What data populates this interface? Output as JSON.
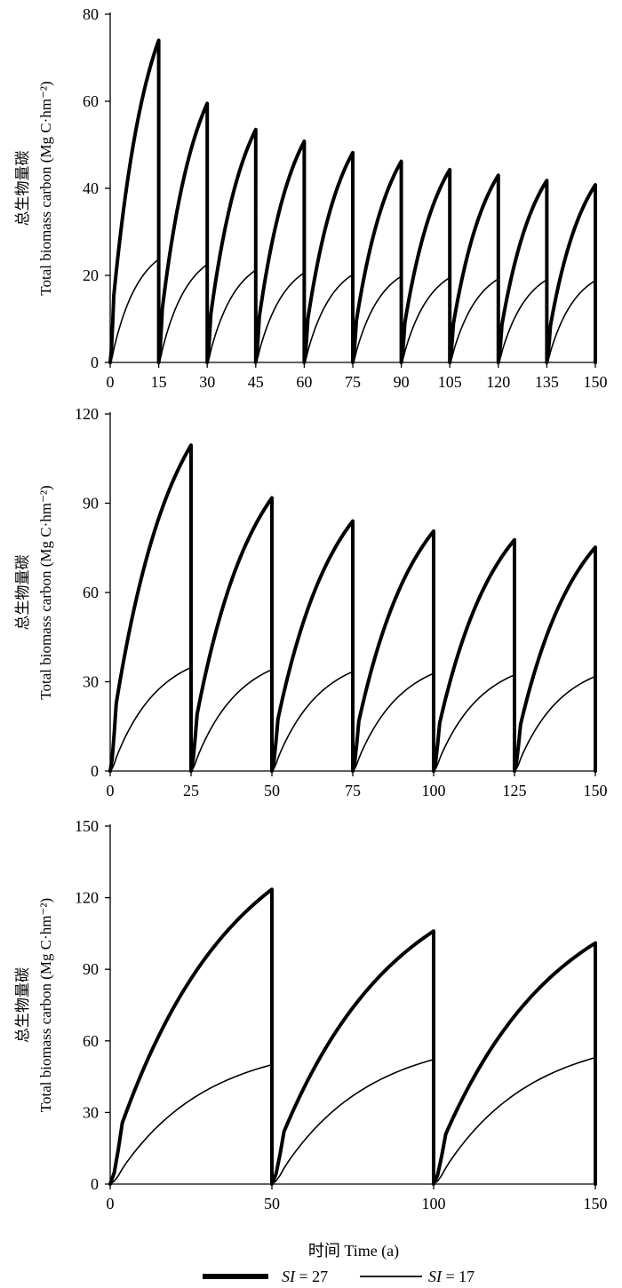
{
  "chart_data": [
    {
      "type": "line",
      "ylabel_cn": "总生物量碳",
      "ylabel_en": "Total  biomass carbon (Mg C·hm⁻²)",
      "ylim": [
        0,
        80
      ],
      "yticks": [
        0,
        20,
        40,
        60,
        80
      ],
      "xlim": [
        0,
        150
      ],
      "xticks": [
        0,
        15,
        30,
        45,
        60,
        75,
        90,
        105,
        120,
        135,
        150
      ],
      "series": [
        {
          "name": "SI = 27",
          "style": "thick",
          "peaks": [
            74,
            59.5,
            53.5,
            50.8,
            48.2,
            46.2,
            44.3,
            43,
            41.8,
            40.8
          ],
          "rotation": 15
        },
        {
          "name": "SI = 17",
          "style": "thin",
          "peaks": [
            23.7,
            22.5,
            21.2,
            20.6,
            20.2,
            19.8,
            19.5,
            19.2,
            19,
            18.8
          ],
          "rotation": 15
        }
      ]
    },
    {
      "type": "line",
      "ylabel_cn": "总生物量碳",
      "ylabel_en": "Total  biomass carbon (Mg C·hm⁻²)",
      "ylim": [
        0,
        120
      ],
      "yticks": [
        0,
        30,
        60,
        90,
        120
      ],
      "xlim": [
        0,
        150
      ],
      "xticks": [
        0,
        25,
        50,
        75,
        100,
        125,
        150
      ],
      "series": [
        {
          "name": "SI = 27",
          "style": "thick",
          "peaks": [
            109.5,
            91.8,
            84,
            80.6,
            77.7,
            75.2
          ],
          "rotation": 25
        },
        {
          "name": "SI = 17",
          "style": "thin",
          "peaks": [
            34.8,
            34.1,
            33.4,
            32.8,
            32.3,
            31.8
          ],
          "rotation": 25
        }
      ]
    },
    {
      "type": "line",
      "ylabel_cn": "总生物量碳",
      "ylabel_en": "Total  biomass carbon (Mg C·hm⁻²)",
      "ylim": [
        0,
        150
      ],
      "yticks": [
        0,
        30,
        60,
        90,
        120,
        150
      ],
      "xlim": [
        0,
        150
      ],
      "xticks": [
        0,
        50,
        100,
        150
      ],
      "series": [
        {
          "name": "SI = 27",
          "style": "thick",
          "peaks": [
            123.5,
            106,
            101
          ],
          "rotation": 50
        },
        {
          "name": "SI = 17",
          "style": "thin",
          "peaks": [
            50,
            52.2,
            53
          ],
          "rotation": 50
        }
      ]
    }
  ],
  "xlabel": "时间  Time (a)",
  "legend": [
    {
      "prefix": "SI",
      "suffix": " = 27",
      "style": "thick"
    },
    {
      "prefix": "SI",
      "suffix": " = 17",
      "style": "thin"
    }
  ]
}
